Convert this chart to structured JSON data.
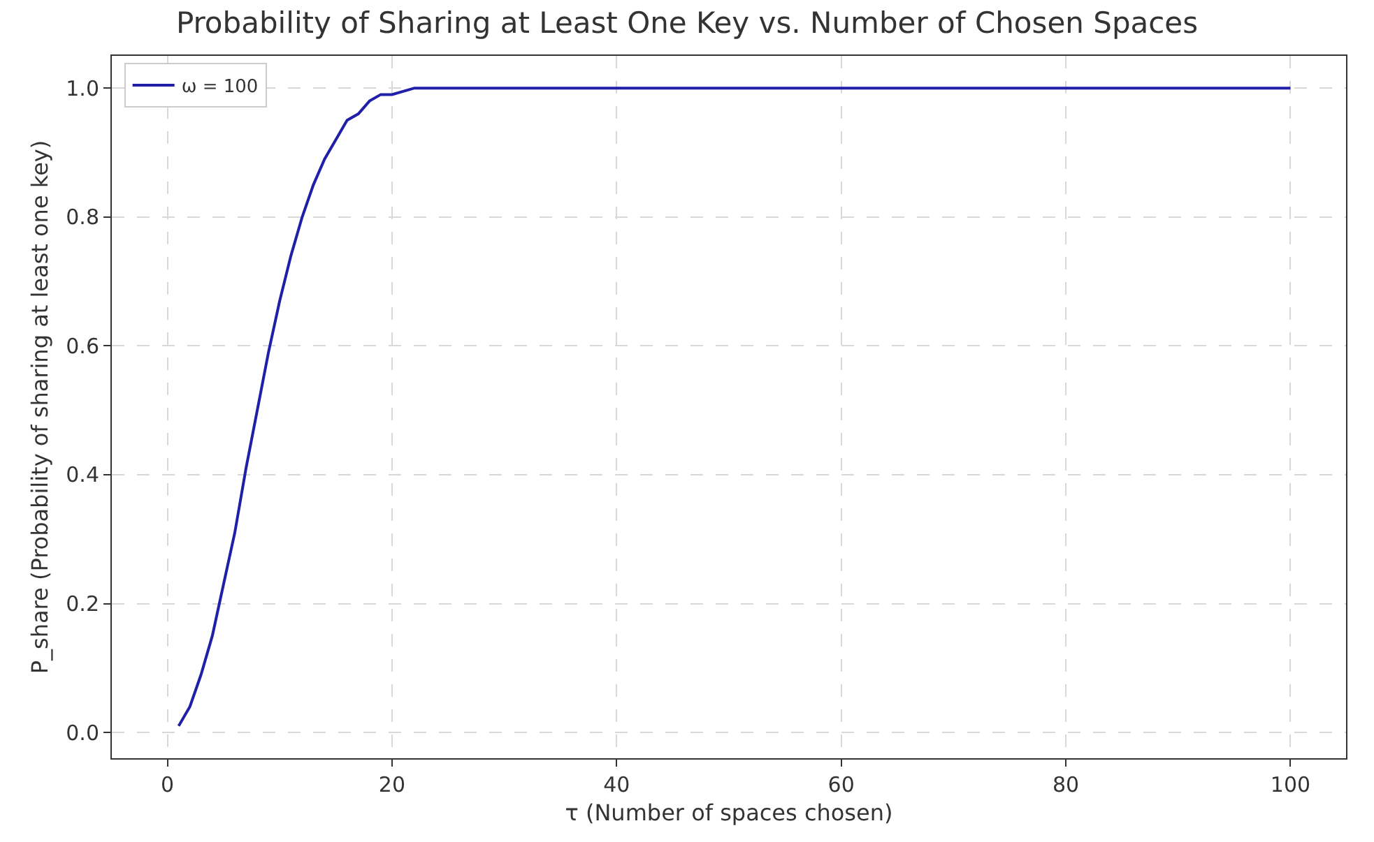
{
  "chart_data": {
    "type": "line",
    "title": "Probability of Sharing at Least One Key vs. Number of Chosen Spaces",
    "xlabel": "τ (Number of spaces chosen)",
    "ylabel": "P_share (Probability of sharing at least one key)",
    "x": [
      1,
      2,
      3,
      4,
      5,
      6,
      7,
      8,
      9,
      10,
      11,
      12,
      13,
      14,
      15,
      16,
      17,
      18,
      19,
      20,
      22,
      24,
      26,
      30,
      40,
      50,
      60,
      70,
      80,
      90,
      100
    ],
    "series": [
      {
        "name": "ω = 100",
        "color": "#1f1fa8",
        "values": [
          0.01,
          0.04,
          0.09,
          0.15,
          0.23,
          0.31,
          0.41,
          0.5,
          0.59,
          0.67,
          0.74,
          0.8,
          0.85,
          0.89,
          0.92,
          0.95,
          0.96,
          0.98,
          0.99,
          0.99,
          1.0,
          1.0,
          1.0,
          1.0,
          1.0,
          1.0,
          1.0,
          1.0,
          1.0,
          1.0,
          1.0
        ]
      }
    ],
    "xlim": [
      -4.95,
      104.95
    ],
    "ylim": [
      -0.04,
      1.05
    ],
    "xticks": [
      0,
      20,
      40,
      60,
      80,
      100
    ],
    "yticks": [
      {
        "value": 0,
        "label": "0.0"
      },
      {
        "value": 0.2,
        "label": "0.2"
      },
      {
        "value": 0.4,
        "label": "0.4"
      },
      {
        "value": 0.6,
        "label": "0.6"
      },
      {
        "value": 0.8,
        "label": "0.8"
      },
      {
        "value": 1.0,
        "label": "1.0"
      }
    ],
    "grid": true,
    "legend": "top left",
    "marker": "none",
    "line_style": "solid"
  }
}
